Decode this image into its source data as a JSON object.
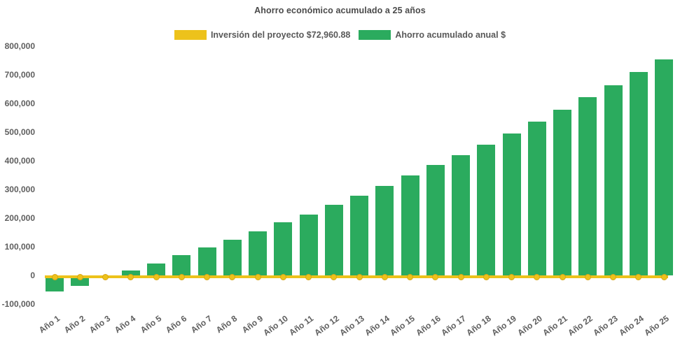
{
  "chart_data": {
    "type": "bar",
    "title": "Ahorro económico acumulado a 25 años",
    "categories": [
      "Año 1",
      "Año 2",
      "Año 3",
      "Año 4",
      "Año 5",
      "Año 6",
      "Año 7",
      "Año 8",
      "Año 9",
      "Año 10",
      "Año 11",
      "Año 12",
      "Año 13",
      "Año 14",
      "Año 15",
      "Año 16",
      "Año 17",
      "Año 18",
      "Año 19",
      "Año 20",
      "Año 21",
      "Año 22",
      "Año 23",
      "Año 24",
      "Año 25"
    ],
    "series": [
      {
        "name": "Inversión del proyecto $72,960.88",
        "type": "line",
        "color": "#EDC21B",
        "marker_border": "#D9A514",
        "constant_value": -4000
      },
      {
        "name": "Ahorro acumulado anual $",
        "type": "bar",
        "color": "#2BAB5E",
        "values": [
          -55000,
          -36000,
          -4000,
          19000,
          43000,
          71000,
          98000,
          125000,
          154000,
          186000,
          214000,
          248000,
          280000,
          313000,
          350000,
          386000,
          421000,
          457000,
          496000,
          538000,
          580000,
          624000,
          665000,
          710000,
          756000
        ]
      }
    ],
    "ylim": [
      -100000,
      800000
    ],
    "ytick_step": 100000,
    "ytick_labels": [
      "800,000",
      "700,000",
      "600,000",
      "500,000",
      "400,000",
      "300,000",
      "200,000",
      "100,000",
      "0",
      "-100,000"
    ],
    "grid": false,
    "legend_position": "top",
    "text_color": "#5e5e5e"
  }
}
